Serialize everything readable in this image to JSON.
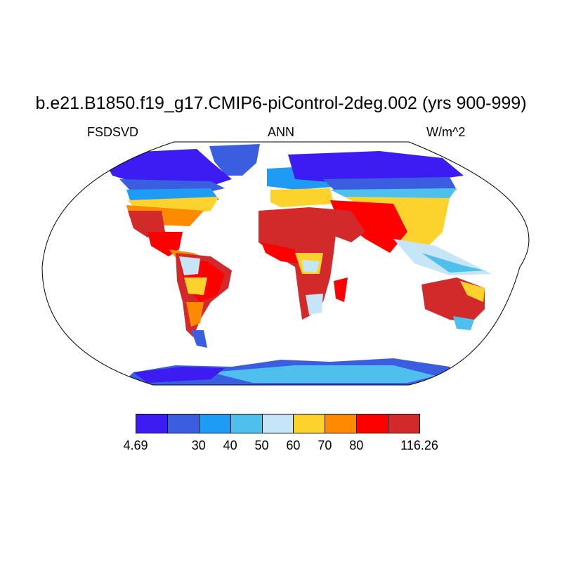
{
  "title": "b.e21.B1850.f19_g17.CMIP6-piControl-2deg.002 (yrs 900-999)",
  "left_label": "FSDSVD",
  "center_label": "ANN",
  "right_label": "W/m^2",
  "colorbar": {
    "colors": [
      "#3c1cf2",
      "#3b5ee0",
      "#1f9af5",
      "#4fc0ee",
      "#c6e6f8",
      "#fcd22c",
      "#fd8a00",
      "#fd0000",
      "#d22a2a"
    ],
    "tick_labels": [
      "4.69",
      "30",
      "40",
      "50",
      "60",
      "70",
      "80",
      "116.26"
    ]
  }
}
